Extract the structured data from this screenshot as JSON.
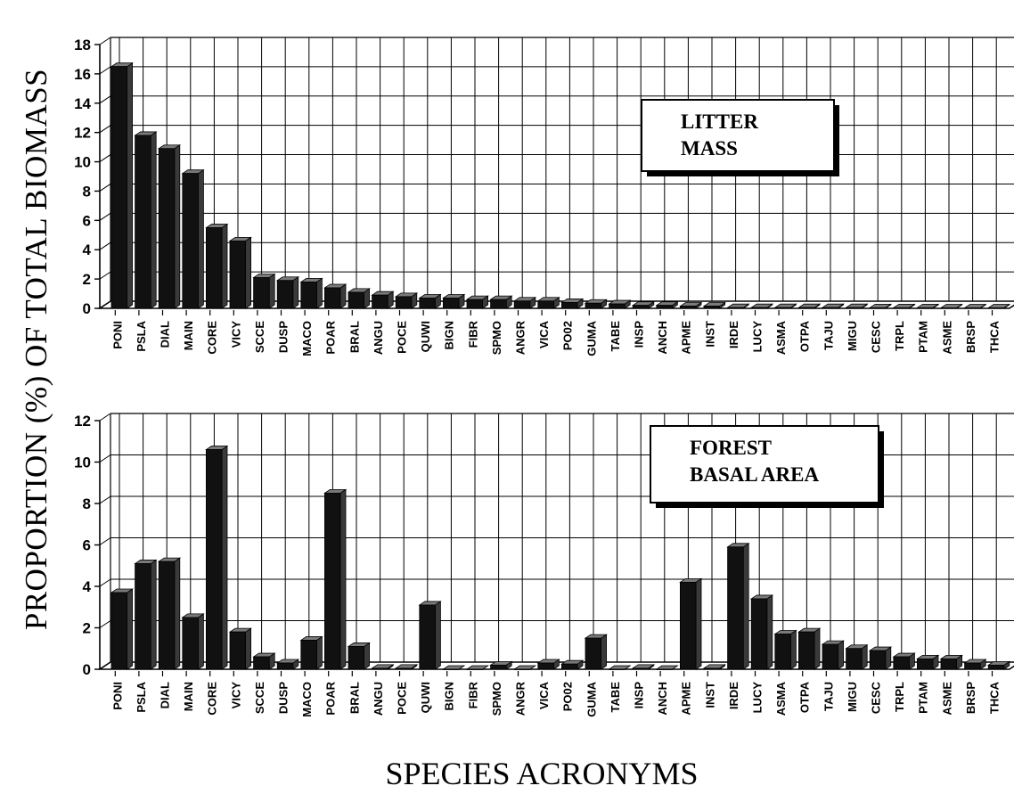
{
  "ylabel": "PROPORTION (%) OF TOTAL BIOMASS",
  "xlabel": "SPECIES ACRONYMS",
  "colors": {
    "bar_front": "#111111",
    "bar_side": "#3a3a3a",
    "bar_top": "#7a7a7a",
    "grid": "#000000"
  },
  "chart_data": [
    {
      "type": "bar",
      "legend": [
        "LITTER",
        "MASS"
      ],
      "legend_position": "top-right",
      "grid": true,
      "ylim": [
        0,
        18
      ],
      "yticks": [
        0,
        2,
        4,
        6,
        8,
        10,
        12,
        14,
        16,
        18
      ],
      "categories": [
        "PONI",
        "PSLA",
        "DIAL",
        "MAIN",
        "CORE",
        "VICY",
        "SCCE",
        "DUSP",
        "MACO",
        "POAR",
        "BRAL",
        "ANGU",
        "POCE",
        "QUWI",
        "BIGN",
        "FIBR",
        "SPMO",
        "ANGR",
        "VICA",
        "PO02",
        "GUMA",
        "TABE",
        "INSP",
        "ANCH",
        "APME",
        "INST",
        "IRDE",
        "LUCY",
        "ASMA",
        "OTPA",
        "TAJU",
        "MIGU",
        "CESC",
        "TRPL",
        "PTAM",
        "ASME",
        "BRSP",
        "THCA"
      ],
      "values": [
        16.5,
        11.8,
        10.9,
        9.2,
        5.5,
        4.6,
        2.1,
        1.9,
        1.8,
        1.4,
        1.1,
        0.9,
        0.8,
        0.7,
        0.7,
        0.6,
        0.6,
        0.5,
        0.5,
        0.4,
        0.35,
        0.3,
        0.2,
        0.2,
        0.15,
        0.15,
        0.05,
        0.05,
        0.05,
        0.05,
        0.05,
        0.05,
        0.04,
        0.04,
        0.04,
        0.03,
        0.03,
        0.03
      ]
    },
    {
      "type": "bar",
      "legend": [
        "FOREST",
        "BASAL AREA"
      ],
      "legend_position": "top-right",
      "grid": true,
      "ylim": [
        0,
        12
      ],
      "yticks": [
        0,
        2,
        4,
        6,
        8,
        10,
        12
      ],
      "categories": [
        "PONI",
        "PSLA",
        "DIAL",
        "MAIN",
        "CORE",
        "VICY",
        "SCCE",
        "DUSP",
        "MACO",
        "POAR",
        "BRAL",
        "ANGU",
        "POCE",
        "QUWI",
        "BIGN",
        "FIBR",
        "SPMO",
        "ANGR",
        "VICA",
        "PO02",
        "GUMA",
        "TABE",
        "INSP",
        "ANCH",
        "APME",
        "INST",
        "IRDE",
        "LUCY",
        "ASMA",
        "OTPA",
        "TAJU",
        "MIGU",
        "CESC",
        "TRPL",
        "PTAM",
        "ASME",
        "BRSP",
        "THCA"
      ],
      "values": [
        3.7,
        5.1,
        5.2,
        2.5,
        10.6,
        1.8,
        0.6,
        0.3,
        1.4,
        8.5,
        1.1,
        0.05,
        0.05,
        3.1,
        0.0,
        0.0,
        0.2,
        0.0,
        0.3,
        0.25,
        1.5,
        0.0,
        0.05,
        0.0,
        4.2,
        0.05,
        5.9,
        3.4,
        1.7,
        1.8,
        1.2,
        1.0,
        0.9,
        0.6,
        0.5,
        0.5,
        0.3,
        0.2
      ]
    }
  ]
}
